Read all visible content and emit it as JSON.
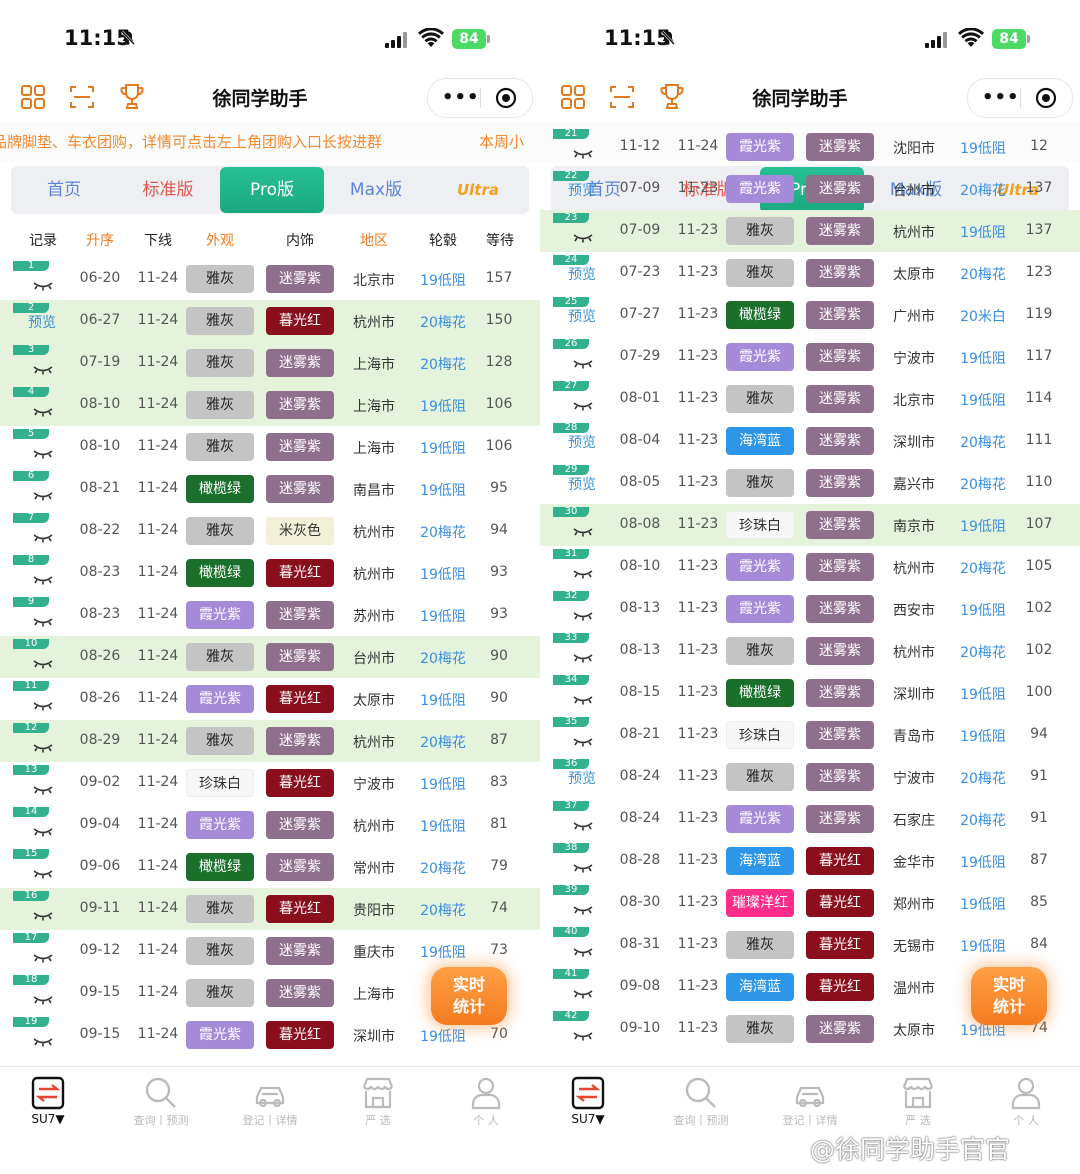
{
  "status": {
    "time": "11:15",
    "battery": "84"
  },
  "app": {
    "title": "徐同学助手"
  },
  "marquee": {
    "left": "品牌脚垫、车衣团购，详情可点击左上角团购入口长按进群",
    "left_tail": "本周小"
  },
  "tabs": [
    "首页",
    "标准版",
    "Pro版",
    "Max版",
    "Ultra"
  ],
  "table_head": [
    "记录",
    "升序",
    "下线",
    "外观",
    "内饰",
    "地区",
    "轮毂",
    "等待"
  ],
  "preview_label": "预览",
  "fab_label": {
    "line1": "实时",
    "line2": "统计"
  },
  "bottom_nav": [
    {
      "label": "SU7▼",
      "icon": "su7-swap-icon"
    },
    {
      "label": "查询丨预测",
      "icon": "search-icon"
    },
    {
      "label": "登记丨详情",
      "icon": "car-icon"
    },
    {
      "label": "严 选",
      "icon": "store-icon"
    },
    {
      "label": "个 人",
      "icon": "person-icon"
    }
  ],
  "watermark": "@徐同学助手官官",
  "colors": {
    "雅灰": "#c4c4c4",
    "迷雾紫": "#8e6f8c",
    "暮光红": "#8a0e1b",
    "橄榄绿": "#1a6f2a",
    "霞光紫": "#a58ad8",
    "米灰色": "#f3f0d9",
    "珍珠白": "#f7f7f7",
    "海湾蓝": "#2d96e8",
    "璀璨洋红": "#ff2d8a"
  },
  "left_rows": [
    {
      "n": "1",
      "p": false,
      "hl": false,
      "a": "06-20",
      "b": "11-24",
      "ext": "雅灰",
      "int": "迷雾紫",
      "city": "北京市",
      "tire": "19低阻",
      "wait": "157"
    },
    {
      "n": "2",
      "p": true,
      "hl": true,
      "a": "06-27",
      "b": "11-24",
      "ext": "雅灰",
      "int": "暮光红",
      "city": "杭州市",
      "tire": "20梅花",
      "wait": "150"
    },
    {
      "n": "3",
      "p": false,
      "hl": true,
      "a": "07-19",
      "b": "11-24",
      "ext": "雅灰",
      "int": "迷雾紫",
      "city": "上海市",
      "tire": "20梅花",
      "wait": "128"
    },
    {
      "n": "4",
      "p": false,
      "hl": true,
      "a": "08-10",
      "b": "11-24",
      "ext": "雅灰",
      "int": "迷雾紫",
      "city": "上海市",
      "tire": "19低阻",
      "wait": "106"
    },
    {
      "n": "5",
      "p": false,
      "hl": false,
      "a": "08-10",
      "b": "11-24",
      "ext": "雅灰",
      "int": "迷雾紫",
      "city": "上海市",
      "tire": "19低阻",
      "wait": "106"
    },
    {
      "n": "6",
      "p": false,
      "hl": false,
      "a": "08-21",
      "b": "11-24",
      "ext": "橄榄绿",
      "int": "迷雾紫",
      "city": "南昌市",
      "tire": "19低阻",
      "wait": "95"
    },
    {
      "n": "7",
      "p": false,
      "hl": false,
      "a": "08-22",
      "b": "11-24",
      "ext": "雅灰",
      "int": "米灰色",
      "city": "杭州市",
      "tire": "20梅花",
      "wait": "94"
    },
    {
      "n": "8",
      "p": false,
      "hl": false,
      "a": "08-23",
      "b": "11-24",
      "ext": "橄榄绿",
      "int": "暮光红",
      "city": "杭州市",
      "tire": "19低阻",
      "wait": "93"
    },
    {
      "n": "9",
      "p": false,
      "hl": false,
      "a": "08-23",
      "b": "11-24",
      "ext": "霞光紫",
      "int": "迷雾紫",
      "city": "苏州市",
      "tire": "19低阻",
      "wait": "93"
    },
    {
      "n": "10",
      "p": false,
      "hl": true,
      "a": "08-26",
      "b": "11-24",
      "ext": "雅灰",
      "int": "迷雾紫",
      "city": "台州市",
      "tire": "20梅花",
      "wait": "90"
    },
    {
      "n": "11",
      "p": false,
      "hl": false,
      "a": "08-26",
      "b": "11-24",
      "ext": "霞光紫",
      "int": "暮光红",
      "city": "太原市",
      "tire": "19低阻",
      "wait": "90"
    },
    {
      "n": "12",
      "p": false,
      "hl": true,
      "a": "08-29",
      "b": "11-24",
      "ext": "雅灰",
      "int": "迷雾紫",
      "city": "杭州市",
      "tire": "20梅花",
      "wait": "87"
    },
    {
      "n": "13",
      "p": false,
      "hl": false,
      "a": "09-02",
      "b": "11-24",
      "ext": "珍珠白",
      "int": "暮光红",
      "city": "宁波市",
      "tire": "19低阻",
      "wait": "83"
    },
    {
      "n": "14",
      "p": false,
      "hl": false,
      "a": "09-04",
      "b": "11-24",
      "ext": "霞光紫",
      "int": "迷雾紫",
      "city": "杭州市",
      "tire": "19低阻",
      "wait": "81"
    },
    {
      "n": "15",
      "p": false,
      "hl": false,
      "a": "09-06",
      "b": "11-24",
      "ext": "橄榄绿",
      "int": "迷雾紫",
      "city": "常州市",
      "tire": "20梅花",
      "wait": "79"
    },
    {
      "n": "16",
      "p": false,
      "hl": true,
      "a": "09-11",
      "b": "11-24",
      "ext": "雅灰",
      "int": "暮光红",
      "city": "贵阳市",
      "tire": "20梅花",
      "wait": "74"
    },
    {
      "n": "17",
      "p": false,
      "hl": false,
      "a": "09-12",
      "b": "11-24",
      "ext": "雅灰",
      "int": "迷雾紫",
      "city": "重庆市",
      "tire": "19低阻",
      "wait": "73"
    },
    {
      "n": "18",
      "p": false,
      "hl": false,
      "a": "09-15",
      "b": "11-24",
      "ext": "雅灰",
      "int": "迷雾紫",
      "city": "上海市",
      "tire": "1",
      "wait": ""
    },
    {
      "n": "19",
      "p": false,
      "hl": false,
      "a": "09-15",
      "b": "11-24",
      "ext": "霞光紫",
      "int": "暮光红",
      "city": "深圳市",
      "tire": "19低阻",
      "wait": "70"
    }
  ],
  "right_rows": [
    {
      "n": "21",
      "p": false,
      "hl": false,
      "a": "11-12",
      "b": "11-24",
      "ext": "霞光紫",
      "int": "迷雾紫",
      "city": "沈阳市",
      "tire": "19低阻",
      "wait": "12"
    },
    {
      "n": "22",
      "p": true,
      "hl": false,
      "a": "07-09",
      "b": "11-23",
      "ext": "霞光紫",
      "int": "迷雾紫",
      "city": "台州市",
      "tire": "20梅花",
      "wait": "137"
    },
    {
      "n": "23",
      "p": false,
      "hl": true,
      "a": "07-09",
      "b": "11-23",
      "ext": "雅灰",
      "int": "迷雾紫",
      "city": "杭州市",
      "tire": "19低阻",
      "wait": "137"
    },
    {
      "n": "24",
      "p": true,
      "hl": false,
      "a": "07-23",
      "b": "11-23",
      "ext": "雅灰",
      "int": "迷雾紫",
      "city": "太原市",
      "tire": "20梅花",
      "wait": "123"
    },
    {
      "n": "25",
      "p": true,
      "hl": false,
      "a": "07-27",
      "b": "11-23",
      "ext": "橄榄绿",
      "int": "迷雾紫",
      "city": "广州市",
      "tire": "20米白",
      "wait": "119"
    },
    {
      "n": "26",
      "p": false,
      "hl": false,
      "a": "07-29",
      "b": "11-23",
      "ext": "霞光紫",
      "int": "迷雾紫",
      "city": "宁波市",
      "tire": "19低阻",
      "wait": "117"
    },
    {
      "n": "27",
      "p": false,
      "hl": false,
      "a": "08-01",
      "b": "11-23",
      "ext": "雅灰",
      "int": "迷雾紫",
      "city": "北京市",
      "tire": "19低阻",
      "wait": "114"
    },
    {
      "n": "28",
      "p": true,
      "hl": false,
      "a": "08-04",
      "b": "11-23",
      "ext": "海湾蓝",
      "int": "迷雾紫",
      "city": "深圳市",
      "tire": "20梅花",
      "wait": "111"
    },
    {
      "n": "29",
      "p": true,
      "hl": false,
      "a": "08-05",
      "b": "11-23",
      "ext": "雅灰",
      "int": "迷雾紫",
      "city": "嘉兴市",
      "tire": "20梅花",
      "wait": "110"
    },
    {
      "n": "30",
      "p": false,
      "hl": true,
      "a": "08-08",
      "b": "11-23",
      "ext": "珍珠白",
      "int": "迷雾紫",
      "city": "南京市",
      "tire": "19低阻",
      "wait": "107"
    },
    {
      "n": "31",
      "p": false,
      "hl": false,
      "a": "08-10",
      "b": "11-23",
      "ext": "霞光紫",
      "int": "迷雾紫",
      "city": "杭州市",
      "tire": "20梅花",
      "wait": "105"
    },
    {
      "n": "32",
      "p": false,
      "hl": false,
      "a": "08-13",
      "b": "11-23",
      "ext": "霞光紫",
      "int": "迷雾紫",
      "city": "西安市",
      "tire": "19低阻",
      "wait": "102"
    },
    {
      "n": "33",
      "p": false,
      "hl": false,
      "a": "08-13",
      "b": "11-23",
      "ext": "雅灰",
      "int": "迷雾紫",
      "city": "杭州市",
      "tire": "20梅花",
      "wait": "102"
    },
    {
      "n": "34",
      "p": false,
      "hl": false,
      "a": "08-15",
      "b": "11-23",
      "ext": "橄榄绿",
      "int": "迷雾紫",
      "city": "深圳市",
      "tire": "19低阻",
      "wait": "100"
    },
    {
      "n": "35",
      "p": false,
      "hl": false,
      "a": "08-21",
      "b": "11-23",
      "ext": "珍珠白",
      "int": "迷雾紫",
      "city": "青岛市",
      "tire": "19低阻",
      "wait": "94"
    },
    {
      "n": "36",
      "p": true,
      "hl": false,
      "a": "08-24",
      "b": "11-23",
      "ext": "雅灰",
      "int": "迷雾紫",
      "city": "宁波市",
      "tire": "20梅花",
      "wait": "91"
    },
    {
      "n": "37",
      "p": false,
      "hl": false,
      "a": "08-24",
      "b": "11-23",
      "ext": "霞光紫",
      "int": "迷雾紫",
      "city": "石家庄",
      "tire": "20梅花",
      "wait": "91"
    },
    {
      "n": "38",
      "p": false,
      "hl": false,
      "a": "08-28",
      "b": "11-23",
      "ext": "海湾蓝",
      "int": "暮光红",
      "city": "金华市",
      "tire": "19低阻",
      "wait": "87"
    },
    {
      "n": "39",
      "p": false,
      "hl": false,
      "a": "08-30",
      "b": "11-23",
      "ext": "璀璨洋红",
      "int": "暮光红",
      "city": "郑州市",
      "tire": "19低阻",
      "wait": "85"
    },
    {
      "n": "40",
      "p": false,
      "hl": false,
      "a": "08-31",
      "b": "11-23",
      "ext": "雅灰",
      "int": "暮光红",
      "city": "无锡市",
      "tire": "19低阻",
      "wait": "84"
    },
    {
      "n": "41",
      "p": false,
      "hl": false,
      "a": "09-08",
      "b": "11-23",
      "ext": "海湾蓝",
      "int": "暮光红",
      "city": "温州市",
      "tire": "1",
      "wait": ""
    },
    {
      "n": "42",
      "p": false,
      "hl": false,
      "a": "09-10",
      "b": "11-23",
      "ext": "雅灰",
      "int": "迷雾紫",
      "city": "太原市",
      "tire": "19低阻",
      "wait": "74"
    }
  ]
}
